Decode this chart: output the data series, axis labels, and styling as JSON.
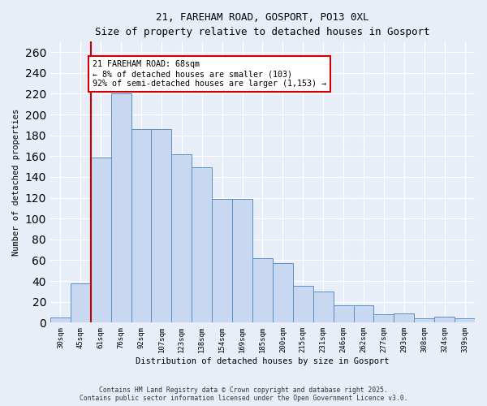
{
  "title_line1": "21, FAREHAM ROAD, GOSPORT, PO13 0XL",
  "title_line2": "Size of property relative to detached houses in Gosport",
  "xlabel": "Distribution of detached houses by size in Gosport",
  "ylabel": "Number of detached properties",
  "categories": [
    "30sqm",
    "45sqm",
    "61sqm",
    "76sqm",
    "92sqm",
    "107sqm",
    "123sqm",
    "138sqm",
    "154sqm",
    "169sqm",
    "185sqm",
    "200sqm",
    "215sqm",
    "231sqm",
    "246sqm",
    "262sqm",
    "277sqm",
    "293sqm",
    "308sqm",
    "324sqm",
    "339sqm"
  ],
  "values": [
    5,
    38,
    159,
    220,
    186,
    186,
    162,
    149,
    119,
    119,
    62,
    57,
    35,
    30,
    17,
    17,
    8,
    9,
    4,
    6,
    4
  ],
  "bar_color": "#c8d8f0",
  "bar_edge_color": "#5a8fc3",
  "red_line_x": 2.0,
  "annotation_text": "21 FAREHAM ROAD: 68sqm\n← 8% of detached houses are smaller (103)\n92% of semi-detached houses are larger (1,153) →",
  "annotation_box_color": "#ffffff",
  "annotation_box_edge": "#cc0000",
  "red_line_color": "#cc0000",
  "footer_line1": "Contains HM Land Registry data © Crown copyright and database right 2025.",
  "footer_line2": "Contains public sector information licensed under the Open Government Licence v3.0.",
  "ylim": [
    0,
    270
  ],
  "background_color": "#e8eef8",
  "grid_color": "#ffffff",
  "yticks": [
    0,
    20,
    40,
    60,
    80,
    100,
    120,
    140,
    160,
    180,
    200,
    220,
    240,
    260
  ]
}
